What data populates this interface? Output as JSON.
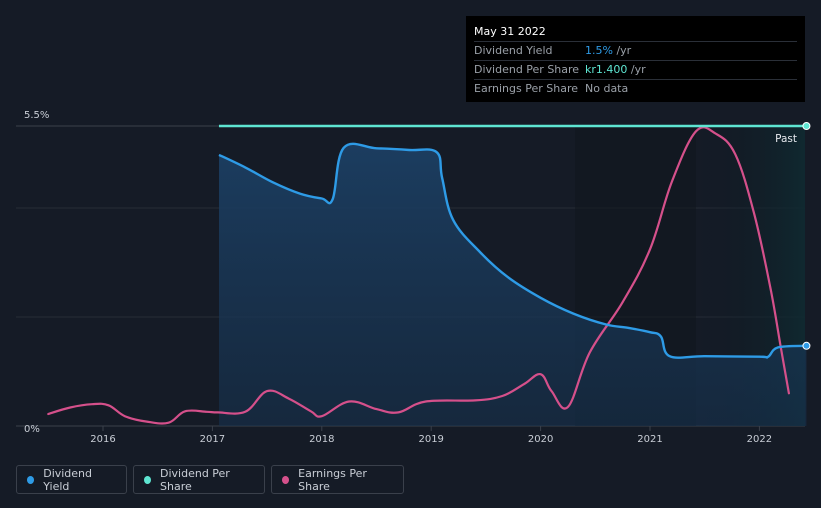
{
  "tooltip": {
    "date": "May 31 2022",
    "rows": [
      {
        "label": "Dividend Yield",
        "value": "1.5%",
        "unit": " /yr"
      },
      {
        "label": "Dividend Per Share",
        "value": "kr1.400",
        "unit": " /yr"
      },
      {
        "label": "Earnings Per Share",
        "value": "No data",
        "unit": ""
      }
    ]
  },
  "past_label": "Past",
  "legend": [
    {
      "label": "Dividend Yield",
      "color": "#2e9be6"
    },
    {
      "label": "Dividend Per Share",
      "color": "#5ee5d2"
    },
    {
      "label": "Earnings Per Share",
      "color": "#d5508b"
    }
  ],
  "chart_data": {
    "type": "line",
    "title": "",
    "xlabel": "",
    "ylabel": "",
    "x_ticks": [
      "2016",
      "2017",
      "2018",
      "2019",
      "2020",
      "2021",
      "2022"
    ],
    "y_ticks": [
      "0%",
      "5.5%"
    ],
    "xlim": [
      2015.3,
      2022.43
    ],
    "ylim": [
      0,
      5.5
    ],
    "series": [
      {
        "name": "Dividend Yield",
        "color": "#2e9be6",
        "unit": "%",
        "points": [
          [
            2017.06,
            4.97
          ],
          [
            2017.3,
            4.74
          ],
          [
            2017.55,
            4.47
          ],
          [
            2017.8,
            4.26
          ],
          [
            2018.0,
            4.17
          ],
          [
            2018.1,
            4.16
          ],
          [
            2018.2,
            5.1
          ],
          [
            2018.5,
            5.09
          ],
          [
            2018.8,
            5.06
          ],
          [
            2019.05,
            5.02
          ],
          [
            2019.1,
            4.55
          ],
          [
            2019.2,
            3.78
          ],
          [
            2019.45,
            3.18
          ],
          [
            2019.7,
            2.73
          ],
          [
            2020.0,
            2.35
          ],
          [
            2020.3,
            2.06
          ],
          [
            2020.6,
            1.86
          ],
          [
            2020.8,
            1.8
          ],
          [
            2021.0,
            1.72
          ],
          [
            2021.1,
            1.64
          ],
          [
            2021.18,
            1.28
          ],
          [
            2021.5,
            1.28
          ],
          [
            2022.0,
            1.27
          ],
          [
            2022.08,
            1.27
          ],
          [
            2022.17,
            1.44
          ],
          [
            2022.43,
            1.47
          ]
        ]
      },
      {
        "name": "Dividend Per Share",
        "color": "#5ee5d2",
        "unit": "kr",
        "points": [
          [
            2017.06,
            1.4
          ],
          [
            2022.43,
            1.4
          ]
        ]
      },
      {
        "name": "Earnings Per Share",
        "color": "#d5508b",
        "unit": "kr",
        "points": [
          [
            2015.5,
            0.22
          ],
          [
            2015.7,
            0.34
          ],
          [
            2015.9,
            0.4
          ],
          [
            2016.05,
            0.38
          ],
          [
            2016.2,
            0.18
          ],
          [
            2016.4,
            0.08
          ],
          [
            2016.6,
            0.06
          ],
          [
            2016.75,
            0.27
          ],
          [
            2016.95,
            0.26
          ],
          [
            2017.05,
            0.25
          ],
          [
            2017.3,
            0.26
          ],
          [
            2017.5,
            0.64
          ],
          [
            2017.7,
            0.5
          ],
          [
            2017.9,
            0.27
          ],
          [
            2018.0,
            0.18
          ],
          [
            2018.25,
            0.45
          ],
          [
            2018.5,
            0.31
          ],
          [
            2018.7,
            0.25
          ],
          [
            2018.95,
            0.45
          ],
          [
            2019.4,
            0.47
          ],
          [
            2019.65,
            0.55
          ],
          [
            2019.85,
            0.77
          ],
          [
            2020.0,
            0.95
          ],
          [
            2020.1,
            0.64
          ],
          [
            2020.25,
            0.35
          ],
          [
            2020.45,
            1.35
          ],
          [
            2020.75,
            2.27
          ],
          [
            2021.0,
            3.24
          ],
          [
            2021.2,
            4.48
          ],
          [
            2021.42,
            5.4
          ],
          [
            2021.6,
            5.36
          ],
          [
            2021.78,
            4.98
          ],
          [
            2021.95,
            3.91
          ],
          [
            2022.1,
            2.54
          ],
          [
            2022.2,
            1.39
          ],
          [
            2022.27,
            0.6
          ]
        ]
      }
    ],
    "highlight_region": {
      "from": 2021.41,
      "to": 2022.43,
      "label": "Past"
    }
  }
}
